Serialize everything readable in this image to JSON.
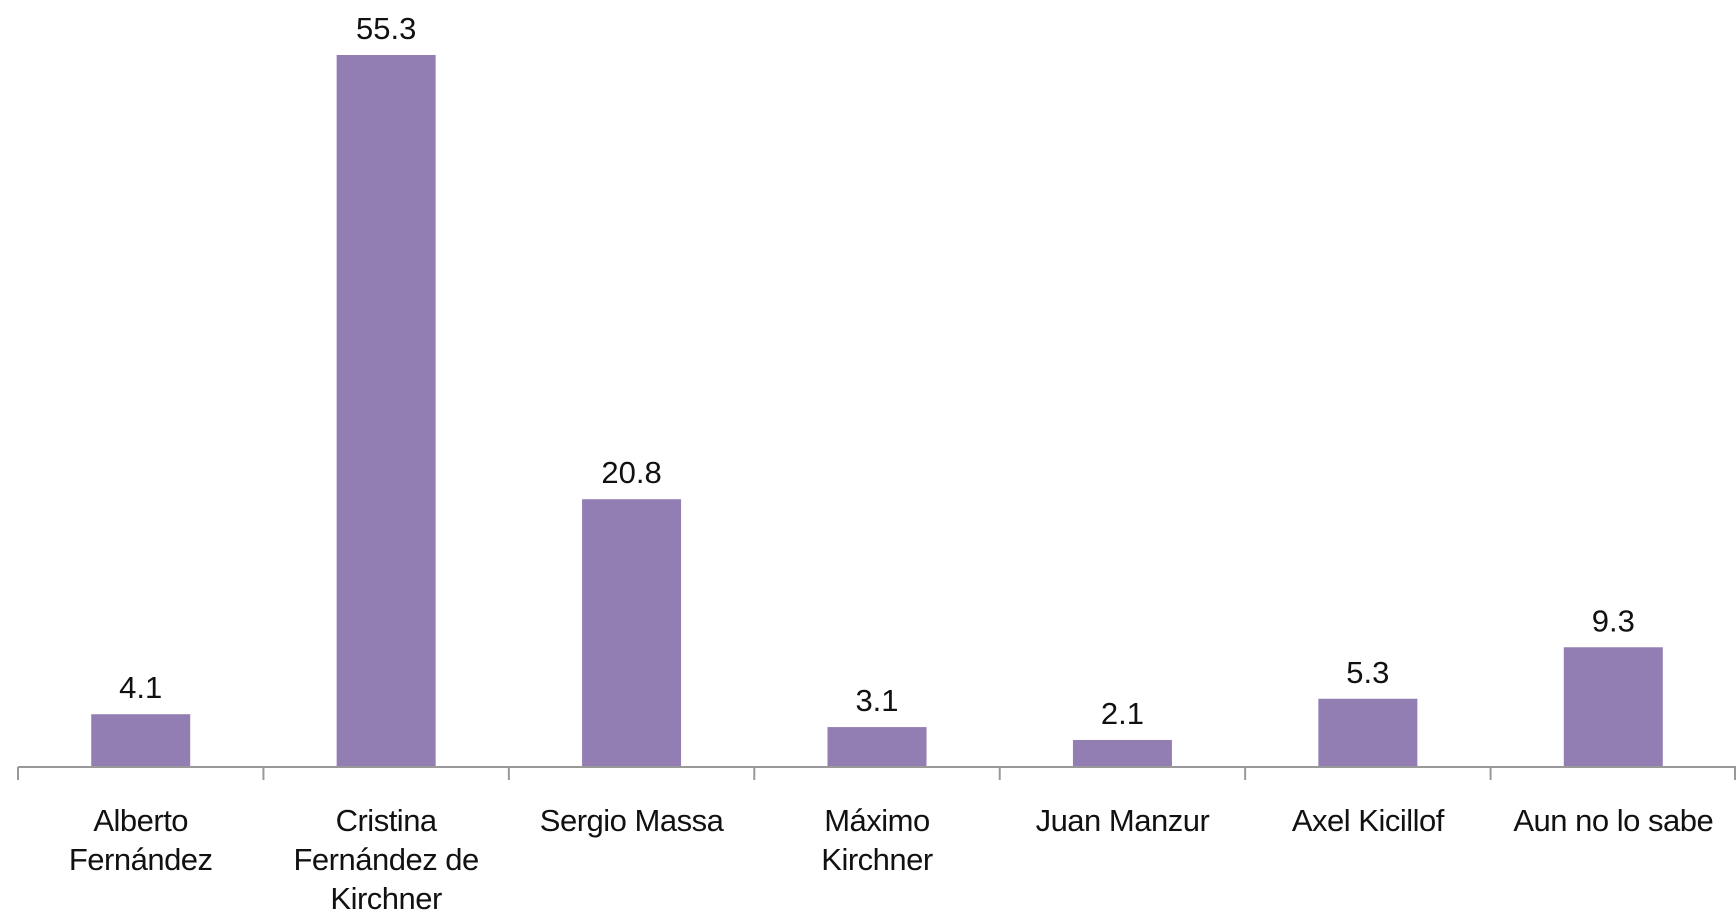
{
  "chart_data": {
    "type": "bar",
    "categories": [
      "Alberto Fernández",
      "Cristina Fernández de Kirchner",
      "Sergio Massa",
      "Máximo Kirchner",
      "Juan Manzur",
      "Axel Kicillof",
      "Aun no lo sabe"
    ],
    "values": [
      4.1,
      55.3,
      20.8,
      3.1,
      2.1,
      5.3,
      9.3
    ],
    "color": "#937eb3"
  }
}
